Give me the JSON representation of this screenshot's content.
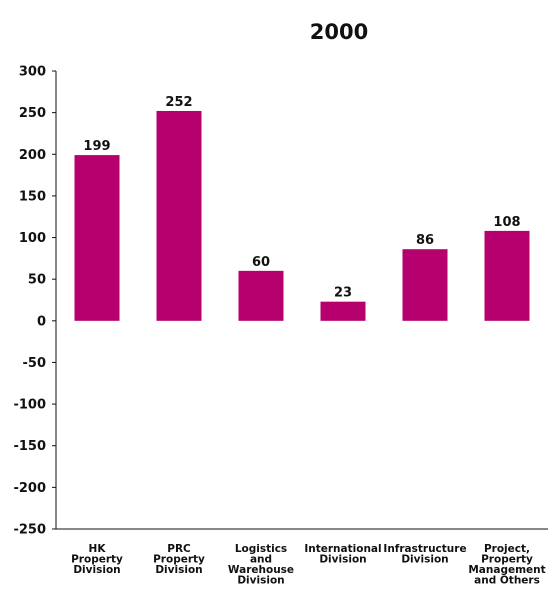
{
  "chart_data": {
    "type": "bar",
    "title": "2000",
    "xlabel": "",
    "ylabel": "",
    "ylim": [
      -250,
      300
    ],
    "yticks": [
      300,
      250,
      200,
      150,
      100,
      50,
      0,
      -50,
      -100,
      -150,
      -200,
      -250
    ],
    "grid": false,
    "categories": [
      [
        "HK",
        "Property",
        "Division"
      ],
      [
        "PRC",
        "Property",
        "Division"
      ],
      [
        "Logistics",
        "and",
        "Warehouse",
        "Division"
      ],
      [
        "International",
        "Division"
      ],
      [
        "Infrastructure",
        "Division"
      ],
      [
        "Project,",
        "Property",
        "Management",
        "and Others"
      ]
    ],
    "values": [
      199,
      252,
      60,
      23,
      86,
      108
    ],
    "data_labels": [
      "199",
      "252",
      "60",
      "23",
      "86",
      "108"
    ],
    "bar_color": "#b5006e",
    "axis_color": "#111111"
  }
}
